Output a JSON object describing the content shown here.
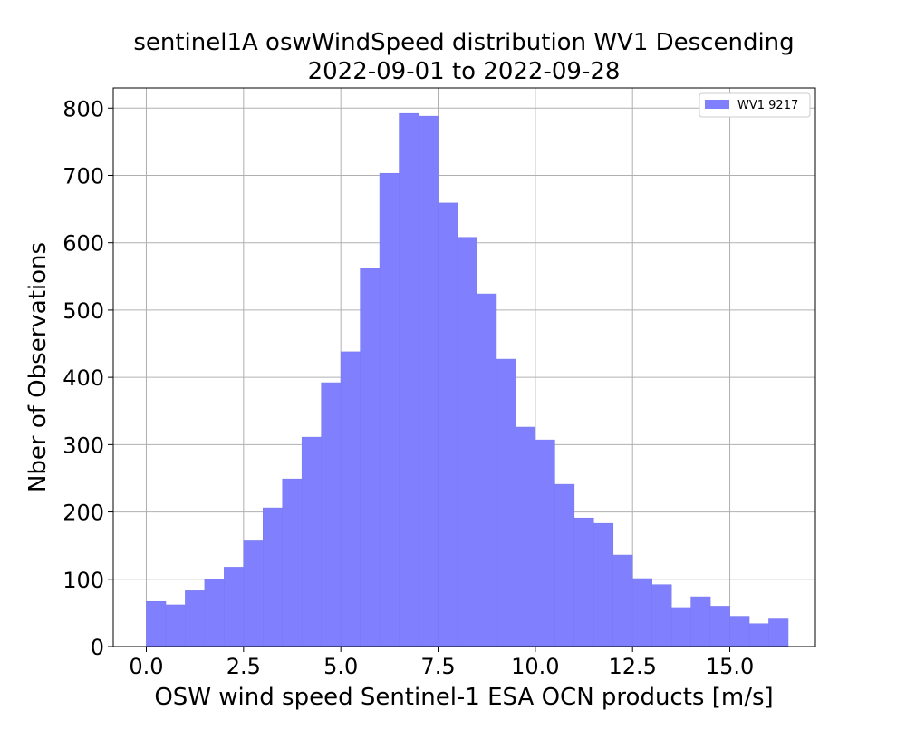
{
  "chart_data": {
    "type": "bar",
    "title_line1": "sentinel1A oswWindSpeed distribution WV1 Descending",
    "title_line2": "2022-09-01 to 2022-09-28",
    "xlabel": "OSW wind speed Sentinel-1 ESA OCN products [m/s]",
    "ylabel": "Nber of Observations",
    "xlim": [
      -0.85,
      17.2
    ],
    "ylim": [
      0,
      830
    ],
    "xticks": [
      0.0,
      2.5,
      5.0,
      7.5,
      10.0,
      12.5,
      15.0
    ],
    "xtick_labels": [
      "0.0",
      "2.5",
      "5.0",
      "7.5",
      "10.0",
      "12.5",
      "15.0"
    ],
    "yticks": [
      0,
      100,
      200,
      300,
      400,
      500,
      600,
      700,
      800
    ],
    "ytick_labels": [
      "0",
      "100",
      "200",
      "300",
      "400",
      "500",
      "600",
      "700",
      "800"
    ],
    "grid": true,
    "legend_position": "top-right",
    "bin_width": 0.5,
    "bin_edges_start": [
      0.0,
      0.5,
      1.0,
      1.5,
      2.0,
      2.5,
      3.0,
      3.5,
      4.0,
      4.5,
      5.0,
      5.5,
      6.0,
      6.5,
      7.0,
      7.5,
      8.0,
      8.5,
      9.0,
      9.5,
      10.0,
      10.5,
      11.0,
      11.5,
      12.0,
      12.5,
      13.0,
      13.5,
      14.0,
      14.5,
      15.0,
      15.5,
      16.0
    ],
    "series": [
      {
        "name": "WV1 9217",
        "color": "#8080ff",
        "values": [
          67,
          62,
          83,
          100,
          118,
          157,
          206,
          249,
          311,
          392,
          438,
          562,
          703,
          792,
          788,
          659,
          608,
          524,
          427,
          326,
          307,
          241,
          191,
          183,
          136,
          101,
          92,
          58,
          74,
          60,
          45,
          34,
          41
        ]
      }
    ]
  }
}
